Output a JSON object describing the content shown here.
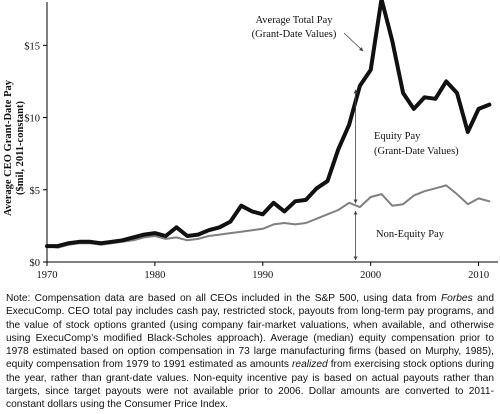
{
  "chart_data": {
    "type": "line",
    "ylabel_line1": "Average CEO Grant-Date Pay",
    "ylabel_line2": "($mil, 2011-constant)",
    "xlim": [
      1970,
      2011.8
    ],
    "ylim": [
      0,
      18
    ],
    "xticks": [
      1970,
      1980,
      1990,
      2000,
      2010
    ],
    "yticks": [
      {
        "value": 0,
        "label": "$0"
      },
      {
        "value": 5,
        "label": "$5"
      },
      {
        "value": 10,
        "label": "$10"
      },
      {
        "value": 15,
        "label": "$15"
      }
    ],
    "grid": false,
    "x": [
      1970,
      1971,
      1972,
      1973,
      1974,
      1975,
      1976,
      1977,
      1978,
      1979,
      1980,
      1981,
      1982,
      1983,
      1984,
      1985,
      1986,
      1987,
      1988,
      1989,
      1990,
      1991,
      1992,
      1993,
      1994,
      1995,
      1996,
      1997,
      1998,
      1999,
      2000,
      2001,
      2002,
      2003,
      2004,
      2005,
      2006,
      2007,
      2008,
      2009,
      2010,
      2011
    ],
    "series": [
      {
        "name": "Average Total Pay (Grant-Date Values)",
        "color": "#111111",
        "values": [
          1.1,
          1.1,
          1.3,
          1.4,
          1.4,
          1.3,
          1.4,
          1.5,
          1.7,
          1.9,
          2.0,
          1.8,
          2.4,
          1.8,
          1.9,
          2.2,
          2.4,
          2.8,
          3.9,
          3.5,
          3.3,
          4.1,
          3.5,
          4.2,
          4.3,
          5.1,
          5.6,
          7.8,
          9.5,
          12.2,
          13.3,
          18.2,
          15.3,
          11.7,
          10.6,
          11.4,
          11.3,
          12.5,
          11.7,
          9.0,
          10.6,
          10.9
        ]
      },
      {
        "name": "Non-Equity Pay",
        "color": "#808080",
        "values": [
          1.1,
          1.0,
          1.2,
          1.3,
          1.3,
          1.2,
          1.3,
          1.4,
          1.5,
          1.7,
          1.8,
          1.6,
          1.7,
          1.5,
          1.6,
          1.8,
          1.9,
          2.0,
          2.1,
          2.2,
          2.3,
          2.6,
          2.7,
          2.6,
          2.7,
          3.0,
          3.3,
          3.6,
          4.1,
          3.8,
          4.5,
          4.7,
          3.9,
          4.0,
          4.6,
          4.9,
          5.1,
          5.3,
          4.7,
          4.0,
          4.4,
          4.2
        ]
      }
    ],
    "annotations": [
      {
        "line1": "Average Total Pay",
        "line2": "(Grant-Date Values)"
      },
      {
        "line1": "Equity Pay",
        "line2": "(Grant-Date Values)"
      },
      {
        "line1": "Non-Equity Pay",
        "line2": ""
      }
    ]
  },
  "note": {
    "segments": [
      {
        "text": "Note: Compensation data are based on all CEOs included in the S&P 500, using data from ",
        "italic": false
      },
      {
        "text": "Forbes",
        "italic": true
      },
      {
        "text": " and ExecuComp. CEO total pay includes cash pay, restricted stock, payouts from long-term pay programs, and the value of stock options granted (using company fair-market valuations, when available, and otherwise using ExecuComp’s modified Black-Scholes approach). Average (median) equity compensation prior to 1978 estimated based on option compensation in 73 large manufacturing firms (based on Murphy, 1985), equity compensation from 1979 to 1991 estimated as amounts ",
        "italic": false
      },
      {
        "text": "realized",
        "italic": true
      },
      {
        "text": " from exercising stock options during the year, rather than grant-date values. Non-equity incentive pay is based on actual payouts rather than targets, since target payouts were not available prior to 2006. Dollar amounts are converted to 2011-constant dollars using the Consumer Price Index.",
        "italic": false
      }
    ]
  }
}
